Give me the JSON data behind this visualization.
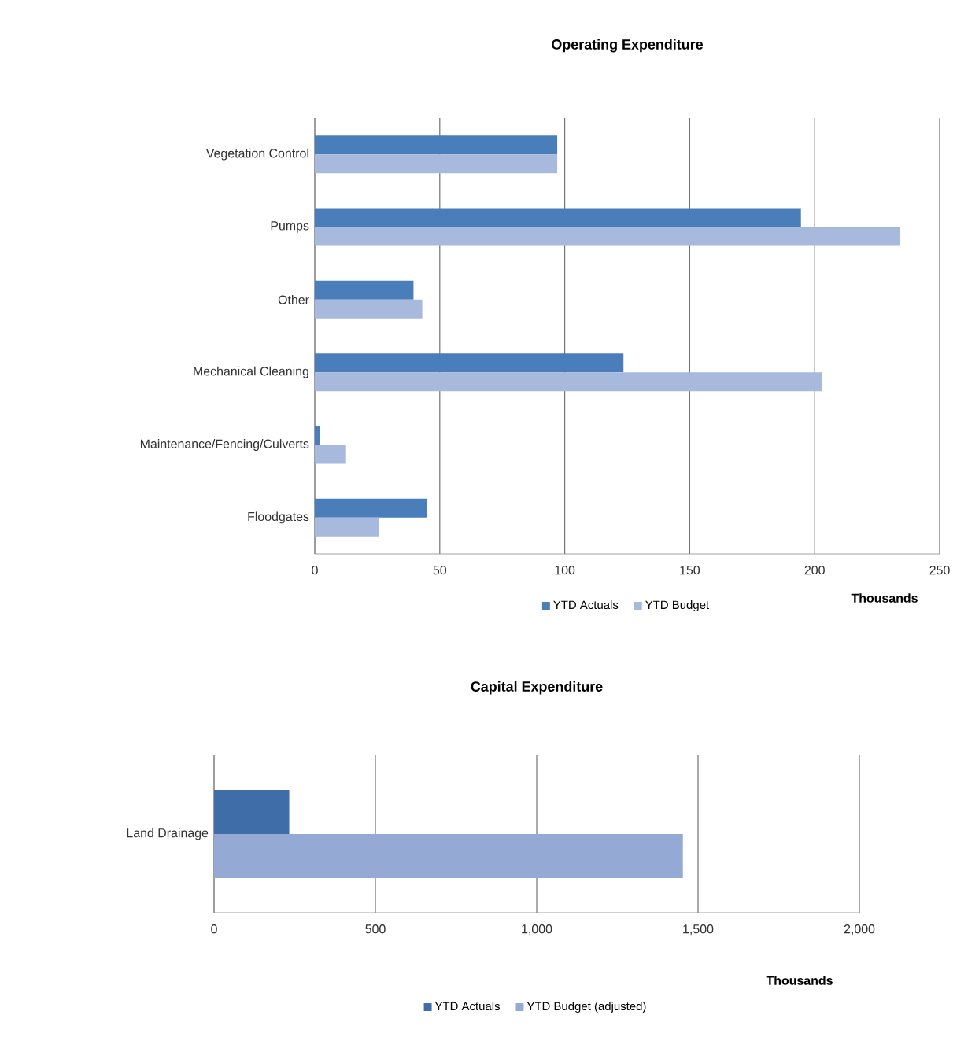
{
  "chart_data": [
    {
      "type": "bar",
      "orientation": "horizontal",
      "title": "Operating Expenditure",
      "xlabel": "Thousands",
      "categories": [
        "Vegetation Control",
        "Pumps",
        "Other",
        "Mechanical Cleaning",
        "Maintenance/Fencing/Culverts",
        "Floodgates"
      ],
      "series": [
        {
          "name": "YTD Actuals",
          "color": "#4a7ebb",
          "values": [
            97,
            194.5,
            39.5,
            123.5,
            2,
            45
          ]
        },
        {
          "name": "YTD Budget",
          "color": "#a7b9dc",
          "values": [
            97,
            234,
            43,
            203,
            12.5,
            25.5
          ]
        }
      ],
      "xlim": [
        0,
        250
      ],
      "xticks": [
        0,
        50,
        100,
        150,
        200,
        250
      ],
      "grid": "x",
      "legend": "bottom"
    },
    {
      "type": "bar",
      "orientation": "horizontal",
      "title": "Capital Expenditure",
      "xlabel": "Thousands",
      "categories": [
        "Land Drainage"
      ],
      "series": [
        {
          "name": "YTD Actuals",
          "color": "#3e6da8",
          "values": [
            233
          ]
        },
        {
          "name": "YTD Budget (adjusted)",
          "color": "#94aad4",
          "values": [
            1453
          ]
        }
      ],
      "xlim": [
        0,
        2000
      ],
      "xticks": [
        0,
        500,
        {
          "value": 1000,
          "label": "1,000"
        },
        {
          "value": 1500,
          "label": "1,500"
        },
        {
          "value": 2000,
          "label": "2,000"
        }
      ],
      "grid": "x",
      "legend": "bottom"
    }
  ]
}
